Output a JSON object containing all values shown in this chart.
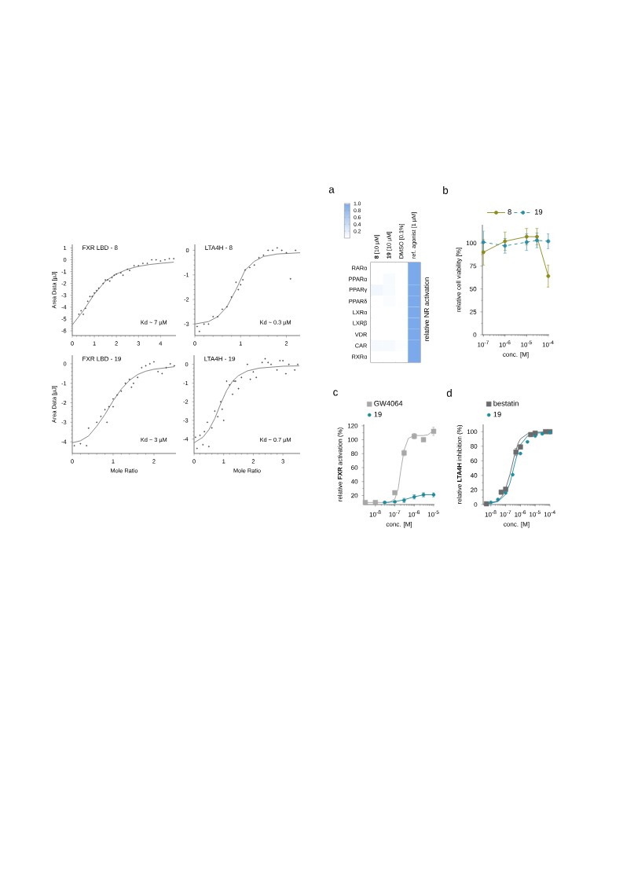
{
  "chart_data": [
    {
      "type": "scatter",
      "title": "FXR LBD - 8",
      "ylabel": "Area Data [µJ]",
      "annotations": [
        "Kd ~ 7 µM"
      ],
      "marker": "circle",
      "xlim": [
        0,
        4.7
      ],
      "ylim": [
        -6.4,
        1.3
      ],
      "xticks": [
        0,
        1,
        2,
        3,
        4
      ],
      "yticks": [
        -6,
        -5,
        -4,
        -3,
        -2,
        -1,
        0,
        1
      ],
      "series": [
        {
          "type": "scatter",
          "color": "#444444",
          "x": [
            0.3,
            0.4,
            0.5,
            0.6,
            0.7,
            0.8,
            0.9,
            1.0,
            1.1,
            1.2,
            1.4,
            1.5,
            1.6,
            1.7,
            1.8,
            1.9,
            2.0,
            2.2,
            2.3,
            2.5,
            2.6,
            2.8,
            3.0,
            3.2,
            3.4,
            3.6,
            3.8,
            4.0,
            4.2,
            4.4,
            4.6
          ],
          "values": [
            -4.6,
            -4.3,
            -4.6,
            -4.1,
            -3.5,
            -3.1,
            -3.1,
            -2.8,
            -2.6,
            -2.4,
            -2.0,
            -1.7,
            -1.7,
            -1.8,
            -1.5,
            -1.3,
            -1.2,
            -1.1,
            -1.3,
            -0.8,
            -0.9,
            -0.5,
            -0.5,
            -0.3,
            -0.3,
            0.0,
            0.0,
            -0.1,
            0.0,
            0.1,
            0.1
          ]
        },
        {
          "type": "line",
          "marker": "none",
          "color": "#7f7f7f",
          "x": [
            0,
            0.5,
            1,
            1.5,
            2,
            2.5,
            3,
            3.5,
            4,
            4.6
          ],
          "values": [
            -5.5,
            -4.3,
            -2.9,
            -1.8,
            -1.2,
            -0.8,
            -0.55,
            -0.4,
            -0.3,
            -0.2
          ]
        }
      ]
    },
    {
      "type": "scatter",
      "title": "LTA4H - 8",
      "annotations": [
        "Kd ~ 0.3 µM"
      ],
      "marker": "circle",
      "xlim": [
        0,
        2.3
      ],
      "ylim": [
        -3.47,
        0.24
      ],
      "xticks": [
        0,
        1,
        2
      ],
      "yticks": [
        -3,
        -2,
        -1,
        0
      ],
      "series": [
        {
          "type": "scatter",
          "color": "#444444",
          "x": [
            0.05,
            0.1,
            0.2,
            0.3,
            0.4,
            0.5,
            0.6,
            0.7,
            0.8,
            0.9,
            0.95,
            1.0,
            1.05,
            1.1,
            1.2,
            1.3,
            1.4,
            1.5,
            1.6,
            1.7,
            1.8,
            1.9,
            2.0,
            2.09,
            2.2
          ],
          "values": [
            -3.1,
            -3.3,
            -3.0,
            -3.0,
            -2.7,
            -2.7,
            -2.4,
            -2.3,
            -1.9,
            -1.3,
            -1.6,
            -1.4,
            -1.2,
            -0.8,
            -0.7,
            -0.6,
            -0.3,
            -0.2,
            0.0,
            0.0,
            0.1,
            0.0,
            -0.1,
            -1.16,
            0.0
          ]
        },
        {
          "type": "line",
          "marker": "none",
          "color": "#7f7f7f",
          "x": [
            0,
            0.3,
            0.5,
            0.7,
            0.9,
            1.0,
            1.1,
            1.3,
            1.5,
            1.8,
            2.3
          ],
          "values": [
            -3.0,
            -2.9,
            -2.7,
            -2.3,
            -1.6,
            -1.2,
            -0.8,
            -0.45,
            -0.25,
            -0.15,
            -0.1
          ]
        }
      ]
    },
    {
      "type": "scatter",
      "title": "FXR LBD - 19",
      "xlabel": "Mole Ratio",
      "ylabel": "Area Data [µJ]",
      "annotations": [
        "Kd ~ 3 µM"
      ],
      "marker": "circle",
      "xlim": [
        0,
        2.54
      ],
      "ylim": [
        -4.6,
        0.44
      ],
      "xticks": [
        0,
        1,
        2
      ],
      "yticks": [
        -4,
        -3,
        -2,
        -1,
        0
      ],
      "series": [
        {
          "type": "scatter",
          "color": "#444444",
          "x": [
            0.05,
            0.2,
            0.35,
            0.4,
            0.6,
            0.7,
            0.8,
            0.85,
            0.9,
            1.0,
            1.0,
            1.1,
            1.2,
            1.3,
            1.4,
            1.45,
            1.5,
            1.6,
            1.7,
            1.8,
            1.9,
            2.0,
            2.1,
            2.2,
            2.3,
            2.4,
            2.5
          ],
          "values": [
            -4.2,
            -4.1,
            -4.2,
            -3.3,
            -3.0,
            -2.7,
            -2.35,
            -3.0,
            -2.2,
            -1.8,
            -2.2,
            -1.6,
            -1.4,
            -1.0,
            -0.8,
            -1.2,
            -1.0,
            -0.7,
            -0.2,
            -0.1,
            0.0,
            0.1,
            -0.4,
            -0.5,
            -0.2,
            0.0,
            -0.1
          ]
        },
        {
          "type": "line",
          "marker": "none",
          "color": "#7f7f7f",
          "x": [
            0,
            0.2,
            0.4,
            0.6,
            0.8,
            1.0,
            1.2,
            1.4,
            1.6,
            1.8,
            2.0,
            2.5
          ],
          "values": [
            -4.05,
            -3.95,
            -3.7,
            -3.2,
            -2.6,
            -1.9,
            -1.3,
            -0.85,
            -0.55,
            -0.38,
            -0.28,
            -0.15
          ]
        }
      ]
    },
    {
      "type": "scatter",
      "title": "LTA4H - 19",
      "xlabel": "Mole Ratio",
      "annotations": [
        "Kd ~ 0.7 µM"
      ],
      "marker": "circle",
      "xlim": [
        0,
        3.58
      ],
      "ylim": [
        -4.77,
        0.49
      ],
      "xticks": [
        0,
        1,
        2,
        3
      ],
      "yticks": [
        -4,
        -3,
        -2,
        -1,
        0
      ],
      "series": [
        {
          "type": "scatter",
          "color": "#444444",
          "x": [
            0.05,
            0.1,
            0.2,
            0.3,
            0.35,
            0.45,
            0.5,
            0.6,
            0.7,
            0.8,
            0.9,
            0.95,
            1.0,
            1.1,
            1.2,
            1.3,
            1.35,
            1.4,
            1.5,
            1.6,
            1.8,
            1.9,
            2.0,
            2.1,
            2.3,
            2.4,
            2.5,
            2.6,
            2.8,
            2.9,
            3.0,
            3.1,
            3.2,
            3.4,
            3.5
          ],
          "values": [
            -3.9,
            -4.5,
            -3.8,
            -4.3,
            -3.6,
            -3.1,
            -4.4,
            -3.4,
            -2.5,
            -2.8,
            -2.0,
            -2.4,
            -3.0,
            -0.9,
            -1.1,
            -1.6,
            -0.9,
            -0.9,
            -1.3,
            -0.7,
            0.0,
            -0.8,
            -0.4,
            -0.7,
            0.1,
            0.3,
            0.1,
            0.0,
            -0.3,
            0.2,
            0.2,
            -0.5,
            0.0,
            -0.3,
            0.0
          ]
        },
        {
          "type": "line",
          "marker": "none",
          "color": "#7f7f7f",
          "x": [
            0,
            0.3,
            0.5,
            0.7,
            0.9,
            1.1,
            1.3,
            1.5,
            1.8,
            2.2,
            3.0,
            3.55
          ],
          "values": [
            -4.2,
            -3.9,
            -3.5,
            -2.9,
            -2.1,
            -1.4,
            -0.9,
            -0.6,
            -0.35,
            -0.2,
            -0.1,
            -0.08
          ]
        }
      ]
    },
    {
      "type": "heatmap",
      "title": "a",
      "clabel": "relative NR activation",
      "categories": [
        "**8** [10 µM]",
        "**19** [10 µM]",
        "DMSO [0.1%]",
        "ref. agonist [1 µM]"
      ],
      "y_categories": [
        "RARα",
        "PPARα",
        "PPARγ",
        "PPARδ",
        "LXRα",
        "LXRβ",
        "VDR",
        "CAR",
        "RXRα"
      ],
      "cells": [
        [
          0,
          0,
          0,
          1.0
        ],
        [
          0,
          0.05,
          0,
          1.0
        ],
        [
          0.1,
          0.05,
          0,
          1.0
        ],
        [
          0,
          0.03,
          0,
          1.0
        ],
        [
          0,
          0,
          0,
          1.0
        ],
        [
          0,
          0,
          0,
          1.0
        ],
        [
          0,
          0,
          0,
          1.0
        ],
        [
          0.07,
          0.07,
          0.02,
          1.0
        ],
        [
          0,
          0,
          0,
          1.0
        ]
      ],
      "clim": [
        0,
        1
      ],
      "cticks": [
        0.2,
        0.4,
        0.6,
        0.8,
        {
          "value": 1,
          "label": "1.0"
        }
      ]
    },
    {
      "type": "line",
      "title": "b",
      "xlabel": "conc. [M]",
      "ylabel": "relative cell viability [%]",
      "log": "x",
      "marker": "circle",
      "legend": "top",
      "x": [
        1e-07,
        1e-06,
        1e-05,
        3e-05,
        0.0001
      ],
      "xlim": [
        9e-08,
        0.00011
      ],
      "ylim": [
        0,
        120
      ],
      "xticks": [
        {
          "value": 1e-07,
          "label": "10$^{-7}$"
        },
        {
          "value": 1e-06,
          "label": "10$^{-6}$"
        },
        {
          "value": 1e-05,
          "label": "10$^{-5}$"
        },
        {
          "value": 0.0001,
          "label": "10$^{-4}$"
        }
      ],
      "yticks": [
        0,
        25,
        50,
        75,
        100
      ],
      "series": [
        {
          "name": "8",
          "color": "#8c8c1a",
          "values": [
            90,
            102,
            107,
            107,
            64
          ],
          "errors": [
            14,
            10,
            9,
            9,
            12
          ]
        },
        {
          "name": "19",
          "color": "#2a8fa6",
          "line_style": "dashed",
          "values": [
            101,
            97,
            101,
            103,
            102
          ],
          "errors": [
            12,
            8,
            9,
            8,
            8
          ]
        }
      ]
    },
    {
      "type": "scatter",
      "title": "c",
      "xlabel": "conc. [M]",
      "ylabel": "relative **FXR** activation (%)",
      "log": "x",
      "legend": "top left",
      "xlim": [
        2.5e-09,
        1.1e-05
      ],
      "ylim": [
        7,
        122
      ],
      "xticks": [
        {
          "value": 1e-08,
          "label": "10$^{-8}$"
        },
        {
          "value": 1e-07,
          "label": "10$^{-7}$"
        },
        {
          "value": 1e-06,
          "label": "10$^{-6}$"
        },
        {
          "value": 1e-05,
          "label": "10$^{-5}$"
        }
      ],
      "yticks": [
        20,
        40,
        60,
        80,
        100,
        120
      ],
      "series": [
        {
          "type": "scatter",
          "name": "GW4064",
          "marker": "square",
          "color": "#a8a8a8",
          "x": [
            3e-09,
            1e-08,
            1e-07,
            3e-07,
            1e-06,
            3e-06,
            1e-05
          ],
          "values": [
            10,
            10,
            24,
            81,
            105,
            100,
            112
          ],
          "errors": [
            null,
            null,
            null,
            4,
            4,
            null,
            6
          ]
        },
        {
          "type": "line",
          "marker": "none",
          "color": "#a8a8a8",
          "x": [
            2.5e-09,
            5e-08,
            1e-07,
            1.5e-07,
            2e-07,
            3e-07,
            5e-07,
            1e-06,
            3e-06,
            5e-06,
            7e-06,
            1e-05
          ],
          "values": [
            10,
            10,
            15,
            30,
            55,
            85,
            102,
            106,
            106,
            107,
            110,
            112
          ]
        },
        {
          "type": "scatter",
          "name": "19",
          "marker": "circle",
          "color": "#1f8a9c",
          "x": [
            3e-08,
            1e-07,
            3e-07,
            1e-06,
            3e-06,
            1e-05
          ],
          "values": [
            10,
            11,
            13,
            18,
            21,
            21
          ],
          "errors": [
            1,
            1,
            3,
            3,
            3,
            3
          ]
        },
        {
          "type": "line",
          "marker": "none",
          "color": "#1f8a9c",
          "x": [
            3e-08,
            1e-07,
            3e-07,
            1e-06,
            3e-06,
            1e-05
          ],
          "values": [
            10,
            11,
            14,
            18,
            21,
            21
          ]
        }
      ]
    },
    {
      "type": "scatter",
      "title": "d",
      "xlabel": "conc. [M]",
      "ylabel": "relative **LTA4H** inhibition (%)",
      "log": "x",
      "legend": "top left",
      "xlim": [
        3e-09,
        0.0001
      ],
      "ylim": [
        0,
        110
      ],
      "xticks": [
        {
          "value": 1e-08,
          "label": "10$^{-8}$"
        },
        {
          "value": 1e-07,
          "label": "10$^{-7}$"
        },
        {
          "value": 1e-06,
          "label": "10$^{-6}$"
        },
        {
          "value": 1e-05,
          "label": "10$^{-5}$"
        },
        {
          "value": 0.0001,
          "label": "10$^{-4}$"
        }
      ],
      "yticks": [
        0,
        20,
        40,
        60,
        80,
        100
      ],
      "series": [
        {
          "type": "scatter",
          "name": "bestatin",
          "marker": "square",
          "color": "#6b6b6b",
          "x": [
            5e-09,
            5e-08,
            1e-07,
            5e-07,
            1e-06,
            5e-06,
            1e-05,
            5e-05,
            0.0001
          ],
          "values": [
            1,
            17,
            21,
            72,
            79,
            96,
            98,
            100,
            100
          ],
          "errors": [
            null,
            null,
            2,
            5,
            3,
            null,
            null,
            null,
            null
          ]
        },
        {
          "type": "line",
          "marker": "none",
          "color": "#6b6b6b",
          "x": [
            3e-09,
            3e-08,
            6e-08,
            1e-07,
            2e-07,
            4e-07,
            7e-07,
            1e-06,
            3e-06,
            1e-05,
            0.0001
          ],
          "values": [
            0,
            5,
            12,
            22,
            42,
            68,
            84,
            90,
            97,
            99,
            100
          ]
        },
        {
          "type": "scatter",
          "name": "19",
          "marker": "circle",
          "color": "#1b8ea3",
          "x": [
            1e-08,
            3e-08,
            1e-07,
            3e-07,
            1e-06,
            3e-06,
            1e-05,
            3e-05,
            0.0001
          ],
          "values": [
            3,
            7,
            16,
            41,
            70,
            86,
            94,
            97,
            99
          ]
        },
        {
          "type": "line",
          "marker": "none",
          "color": "#1b8ea3",
          "x": [
            3e-09,
            3e-08,
            1e-07,
            2e-07,
            4e-07,
            7e-07,
            1e-06,
            3e-06,
            1e-05,
            0.0001
          ],
          "values": [
            0,
            4,
            14,
            30,
            55,
            74,
            82,
            94,
            98,
            99
          ]
        }
      ]
    }
  ]
}
